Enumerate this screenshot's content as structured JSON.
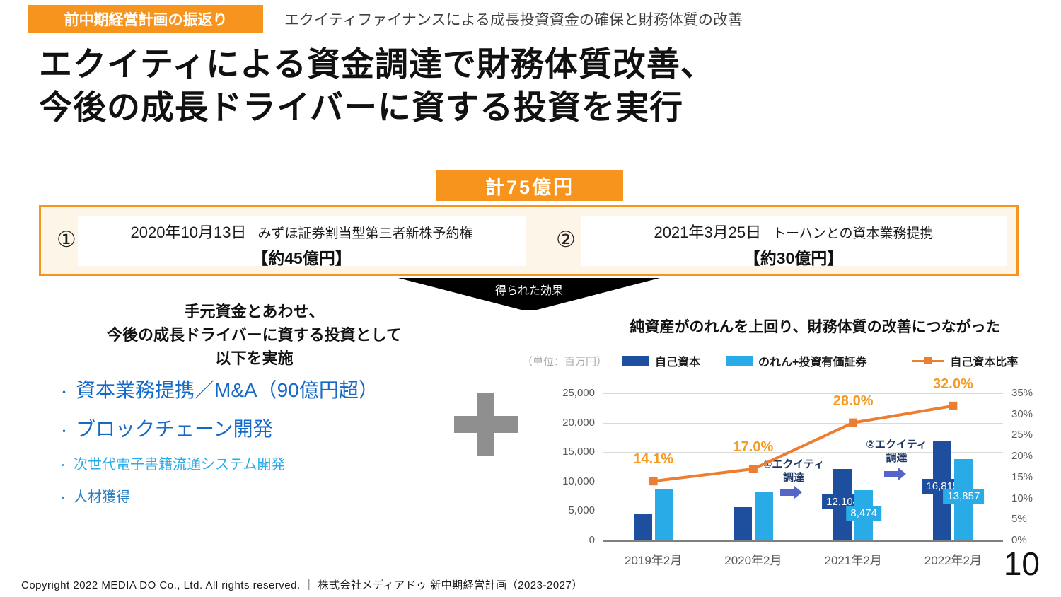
{
  "header": {
    "badge": "前中期経営計画の振返り",
    "subtitle": "エクイティファイナンスによる成長投資資金の確保と財務体質の改善"
  },
  "title": {
    "line1": "エクイティによる資金調達で財務体質改善、",
    "line2": "今後の成長ドライバーに資する投資を実行"
  },
  "total_badge": "計75億円",
  "deals": [
    {
      "number": "①",
      "date": "2020年10月13日",
      "desc": "みずほ証券割当型第三者新株予約権",
      "amount": "【約45億円】"
    },
    {
      "number": "②",
      "date": "2021年3月25日",
      "desc": "トーハンとの資本業務提携",
      "amount": "【約30億円】"
    }
  ],
  "arrow_label": "得られた効果",
  "left_panel": {
    "heading": [
      "手元資金とあわせ、",
      "今後の成長ドライバーに資する投資として",
      "以下を実施"
    ],
    "bullets": [
      {
        "marker": "・",
        "text": "資本業務提携／M&A（90億円超）",
        "color": "#1569c7",
        "size": "large"
      },
      {
        "marker": "・",
        "text": "ブロックチェーン開発",
        "color": "#1569c7",
        "size": "large"
      },
      {
        "marker": "・",
        "text": "次世代電子書籍流通システム開発",
        "color": "#29abe8",
        "size": "small"
      },
      {
        "marker": "・",
        "text": "人材獲得",
        "color": "#2a7fc1",
        "size": "small"
      }
    ]
  },
  "chart": {
    "title": "純資産がのれんを上回り、財務体質の改善につながった",
    "unit_label": "（単位：百万円）",
    "legend": [
      {
        "label": "自己資本",
        "color": "#1d4f9e",
        "type": "bar"
      },
      {
        "label": "のれん+投資有価証券",
        "color": "#29abe8",
        "type": "bar"
      },
      {
        "label": "自己資本比率",
        "color": "#ed7d31",
        "type": "line"
      }
    ],
    "annotations": [
      {
        "line1": "①エクイティ",
        "line2": "調達"
      },
      {
        "line1": "②エクイティ",
        "line2": "調達"
      }
    ]
  },
  "chart_data": {
    "type": "bar",
    "title": "純資産がのれんを上回り、財務体質の改善につながった",
    "unit": "百万円",
    "categories": [
      "2019年2月",
      "2020年2月",
      "2021年2月",
      "2022年2月"
    ],
    "series": [
      {
        "name": "自己資本",
        "type": "bar",
        "color": "#1d4f9e",
        "values": [
          4400,
          5600,
          12104,
          16815
        ],
        "labels": [
          null,
          null,
          "12,104",
          "16,815"
        ]
      },
      {
        "name": "のれん+投資有価証券",
        "type": "bar",
        "color": "#29abe8",
        "values": [
          8700,
          8300,
          8474,
          13857
        ],
        "labels": [
          null,
          null,
          "8,474",
          "13,857"
        ]
      },
      {
        "name": "自己資本比率",
        "type": "line",
        "axis": "right",
        "color": "#ed7d31",
        "values": [
          14.1,
          17.0,
          28.0,
          32.0
        ],
        "labels": [
          "14.1%",
          "17.0%",
          "28.0%",
          "32.0%"
        ]
      }
    ],
    "left_axis": {
      "min": 0,
      "max": 25000,
      "step": 5000,
      "ticks": [
        "0",
        "5,000",
        "10,000",
        "15,000",
        "20,000",
        "25,000"
      ]
    },
    "right_axis": {
      "min": 0,
      "max": 35,
      "step": 5,
      "ticks": [
        "0%",
        "5%",
        "10%",
        "15%",
        "20%",
        "25%",
        "30%",
        "35%"
      ]
    },
    "grid": true,
    "legend_position": "top"
  },
  "footer": {
    "copyright": "Copyright 2022 MEDIA DO Co., Ltd. All rights reserved. ｜ 株式会社メディアドゥ 新中期経営計画（2023-2027）",
    "page_number": "10"
  }
}
